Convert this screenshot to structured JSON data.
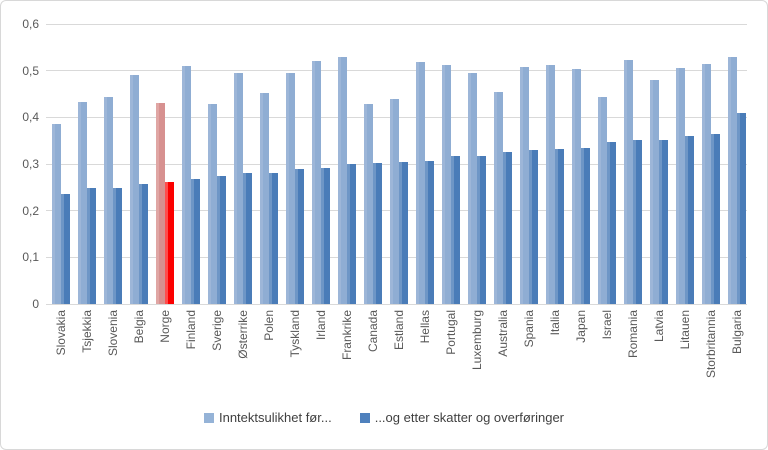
{
  "chart_data": {
    "type": "bar",
    "title": "",
    "categories": [
      "Slovakia",
      "Tsjekkia",
      "Slovenia",
      "Belgia",
      "Norge",
      "Finland",
      "Sverige",
      "Østerrike",
      "Polen",
      "Tyskland",
      "Irland",
      "Frankrike",
      "Canada",
      "Estland",
      "Hellas",
      "Portugal",
      "Luxemburg",
      "Australia",
      "Spania",
      "Italia",
      "Japan",
      "Israel",
      "Romania",
      "Latvia",
      "Litauen",
      "Storbritannia",
      "Bulgaria"
    ],
    "series": [
      {
        "name": "Inntektsulikhet før...",
        "color": "#95B3D7",
        "values": [
          0.385,
          0.432,
          0.443,
          0.49,
          0.43,
          0.51,
          0.429,
          0.494,
          0.453,
          0.495,
          0.521,
          0.53,
          0.428,
          0.44,
          0.518,
          0.513,
          0.494,
          0.454,
          0.507,
          0.512,
          0.503,
          0.444,
          0.523,
          0.48,
          0.505,
          0.515,
          0.53
        ]
      },
      {
        "name": "...og etter skatter og overføringer",
        "color": "#4F81BD",
        "values": [
          0.235,
          0.248,
          0.249,
          0.258,
          0.261,
          0.267,
          0.274,
          0.28,
          0.281,
          0.289,
          0.292,
          0.301,
          0.303,
          0.305,
          0.306,
          0.317,
          0.318,
          0.325,
          0.329,
          0.332,
          0.335,
          0.348,
          0.351,
          0.352,
          0.36,
          0.365,
          0.409
        ]
      }
    ],
    "highlight": {
      "category": "Norge",
      "index": 4,
      "before_color": "#D99694",
      "after_color": "#FF0000"
    },
    "ylim": [
      0,
      0.6
    ],
    "yticks": [
      {
        "label": "0",
        "value": 0
      },
      {
        "label": "0,1",
        "value": 0.1
      },
      {
        "label": "0,2",
        "value": 0.2
      },
      {
        "label": "0,3",
        "value": 0.3
      },
      {
        "label": "0,4",
        "value": 0.4
      },
      {
        "label": "0,5",
        "value": 0.5
      },
      {
        "label": "0,6",
        "value": 0.6
      }
    ],
    "decimal_separator": ",",
    "grid": true,
    "legend_position": "bottom",
    "gridline_color": "#D9D9D9",
    "axis_text_color": "#595959"
  }
}
